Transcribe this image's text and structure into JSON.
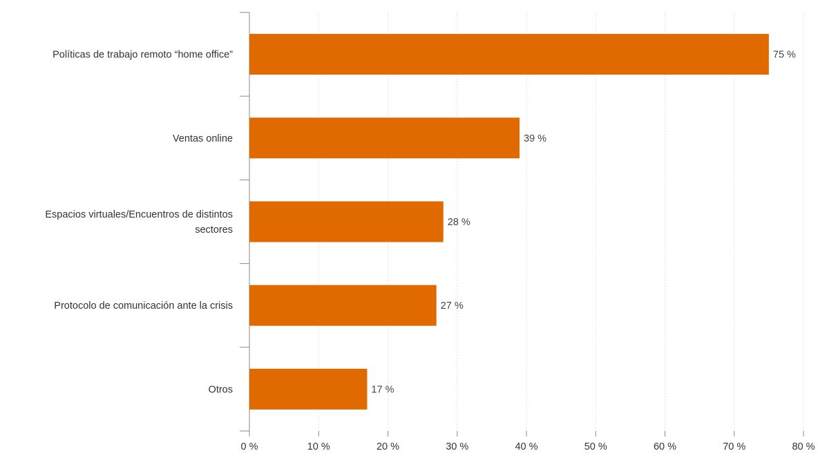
{
  "chart_data": {
    "type": "bar",
    "orientation": "horizontal",
    "categories": [
      [
        "Políticas de trabajo remoto “home office”"
      ],
      [
        "Ventas online"
      ],
      [
        "Espacios virtuales/Encuentros de distintos",
        "sectores"
      ],
      [
        "Protocolo de comunicación ante la crisis"
      ],
      [
        "Otros"
      ]
    ],
    "values": [
      75,
      39,
      28,
      27,
      17
    ],
    "value_labels": [
      "75 %",
      "39 %",
      "28 %",
      "27 %",
      "17 %"
    ],
    "xlim": [
      0,
      80
    ],
    "x_ticks": [
      0,
      10,
      20,
      30,
      40,
      50,
      60,
      70,
      80
    ],
    "x_tick_labels": [
      "0 %",
      "10 %",
      "20 %",
      "30 %",
      "40 %",
      "50 %",
      "60 %",
      "70 %",
      "80 %"
    ],
    "grid": "vertical-dotted",
    "bar_color": "#e06a00",
    "title": "",
    "xlabel": "",
    "ylabel": ""
  }
}
